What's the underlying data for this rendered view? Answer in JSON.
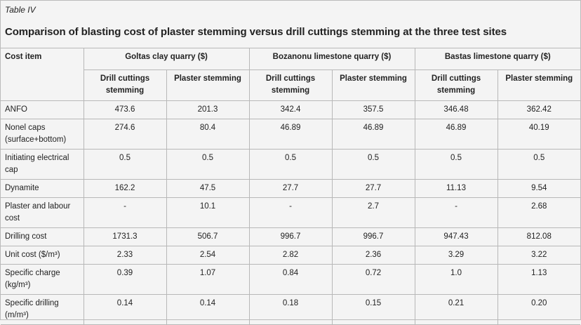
{
  "header": {
    "label": "Table IV",
    "title": "Comparison of blasting cost of plaster stemming versus drill cuttings stemming at the three test sites"
  },
  "table": {
    "first_header": "Cost item",
    "groups": [
      {
        "name": "Goltas clay quarry ($)",
        "subcolumns": [
          "Drill cuttings stemming",
          "Plaster stemming"
        ]
      },
      {
        "name": "Bozanonu limestone quarry ($)",
        "subcolumns": [
          "Drill cuttings stemming",
          "Plaster stemming"
        ]
      },
      {
        "name": "Bastas limestone quarry ($)",
        "subcolumns": [
          "Drill cuttings stemming",
          "Plaster stemming"
        ]
      }
    ],
    "rows": [
      {
        "item": "ANFO",
        "values": [
          "473.6",
          "201.3",
          "342.4",
          "357.5",
          "346.48",
          "362.42"
        ]
      },
      {
        "item": "Nonel caps (surface+bottom)",
        "values": [
          "274.6",
          "80.4",
          "46.89",
          "46.89",
          "46.89",
          "40.19"
        ]
      },
      {
        "item": "Initiating electrical cap",
        "values": [
          "0.5",
          "0.5",
          "0.5",
          "0.5",
          "0.5",
          "0.5"
        ]
      },
      {
        "item": "Dynamite",
        "values": [
          "162.2",
          "47.5",
          "27.7",
          "27.7",
          "11.13",
          "9.54"
        ]
      },
      {
        "item": "Plaster and labour cost",
        "values": [
          "-",
          "10.1",
          "-",
          "2.7",
          "-",
          "2.68"
        ]
      },
      {
        "item": "Drilling cost",
        "values": [
          "1731.3",
          "506.7",
          "996.7",
          "996.7",
          "947.43",
          "812.08"
        ]
      },
      {
        "item": "Unit cost ($/m³)",
        "values": [
          "2.33",
          "2.54",
          "2.82",
          "2.36",
          "3.29",
          "3.22"
        ]
      },
      {
        "item": "Specific charge (kg/m³)",
        "values": [
          "0.39",
          "1.07",
          "0.84",
          "0.72",
          "1.0",
          "1.13"
        ]
      },
      {
        "item": "Specific drilling (m/m³)",
        "values": [
          "0.14",
          "0.14",
          "0.18",
          "0.15",
          "0.21",
          "0.20"
        ]
      }
    ]
  }
}
